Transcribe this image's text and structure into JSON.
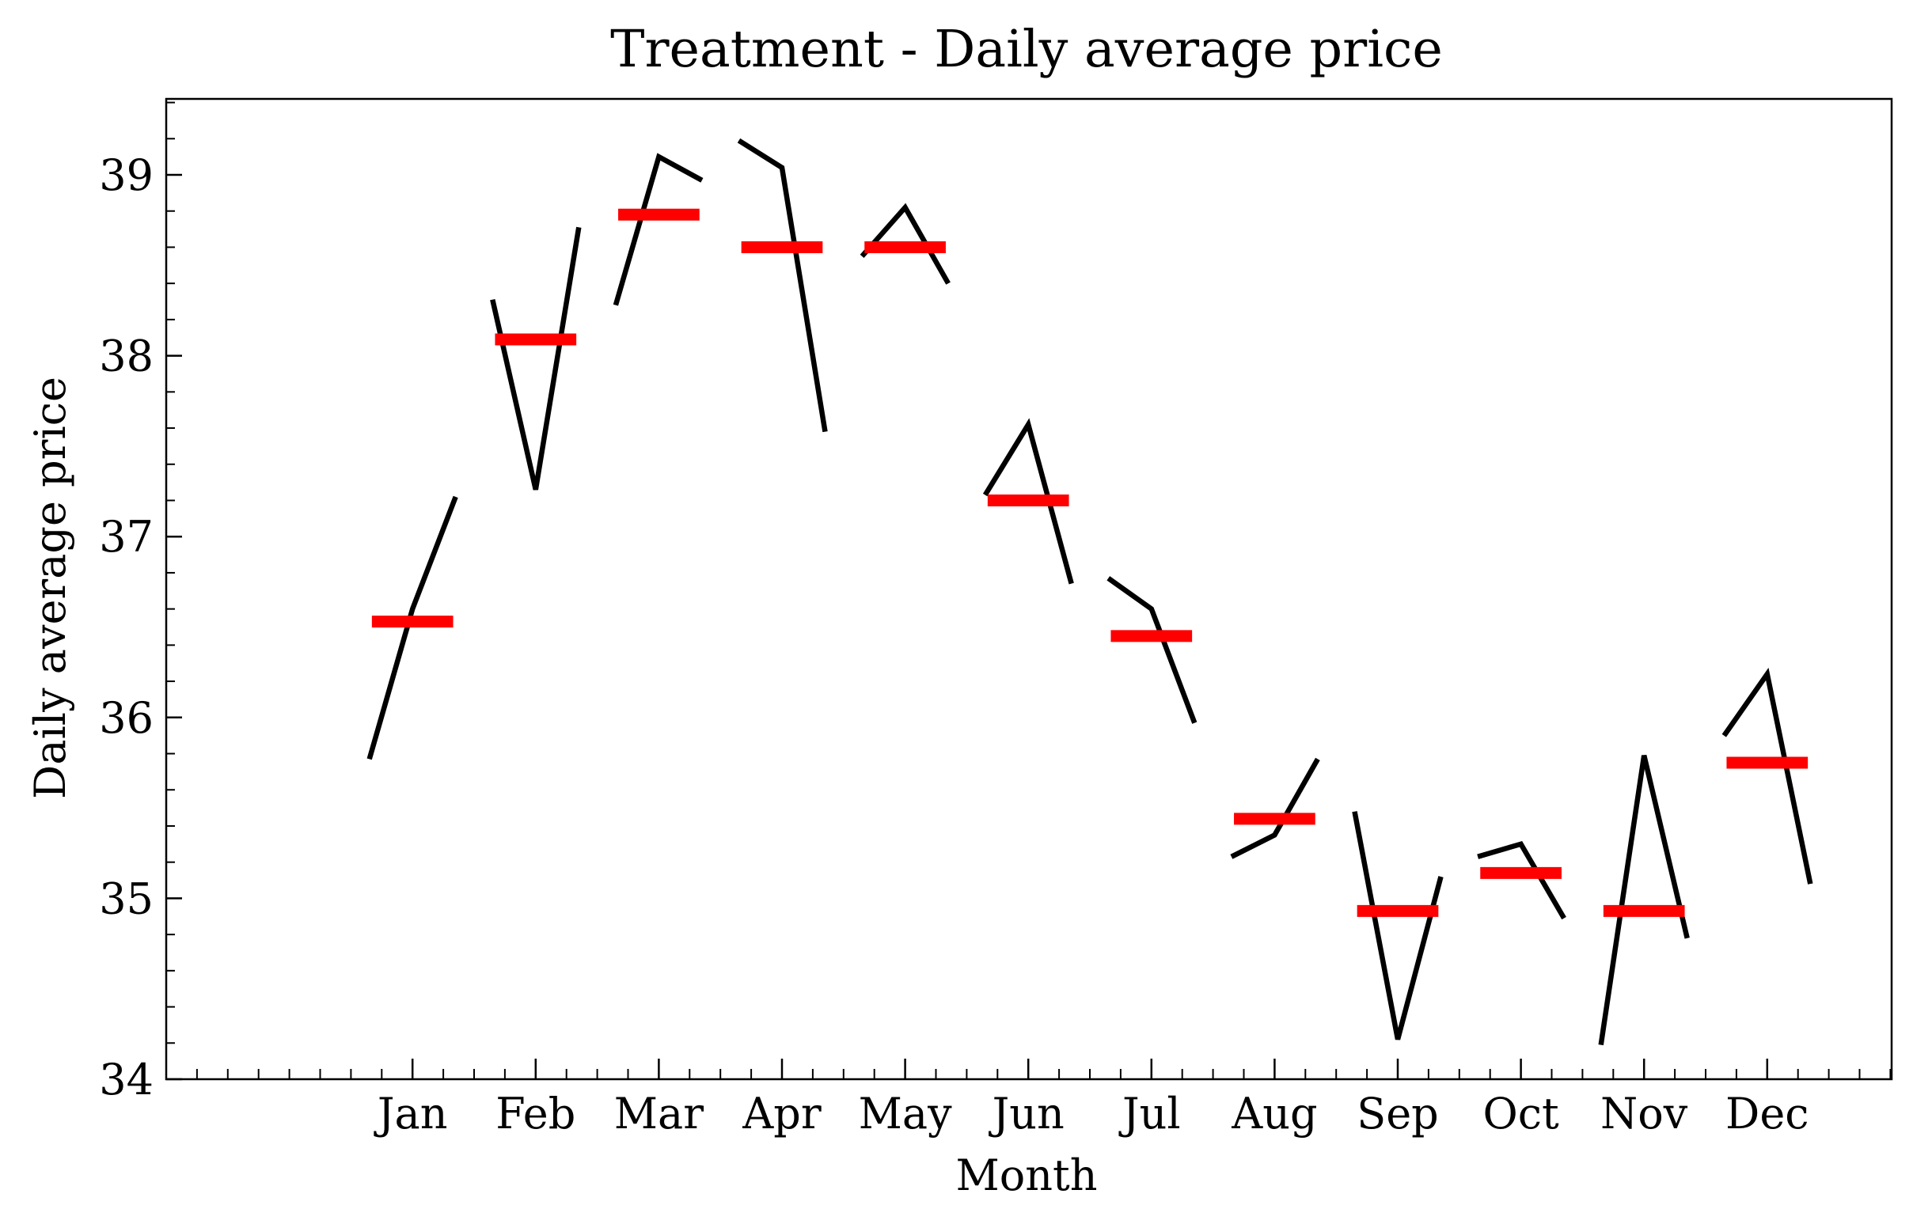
{
  "chart_data": {
    "type": "line",
    "title": "Treatment - Daily average price",
    "xlabel": "Month",
    "ylabel": "Daily average price",
    "ylim": [
      34,
      39.42
    ],
    "yticks": [
      34,
      35,
      36,
      37,
      38,
      39
    ],
    "grid": false,
    "categories": [
      "Jan",
      "Feb",
      "Mar",
      "Apr",
      "May",
      "Jun",
      "Jul",
      "Aug",
      "Sep",
      "Oct",
      "Nov",
      "Dec"
    ],
    "series": [
      {
        "role": "sub-period values",
        "color": "#000000",
        "values": [
          [
            35.77,
            36.6,
            37.22
          ],
          [
            38.31,
            37.26,
            38.71
          ],
          [
            38.28,
            39.1,
            38.97
          ],
          [
            39.19,
            39.04,
            37.58
          ],
          [
            38.55,
            38.82,
            38.4
          ],
          [
            37.23,
            37.62,
            36.74
          ],
          [
            36.77,
            36.6,
            35.97
          ],
          [
            35.23,
            35.35,
            35.77
          ],
          [
            35.48,
            34.22,
            35.12
          ],
          [
            35.23,
            35.3,
            34.89
          ],
          [
            34.19,
            35.79,
            34.78
          ],
          [
            35.9,
            36.24,
            35.08
          ]
        ]
      },
      {
        "role": "monthly mean",
        "color": "#ff0000",
        "values": [
          36.53,
          38.09,
          38.78,
          38.6,
          38.6,
          37.2,
          36.45,
          35.44,
          34.93,
          35.14,
          34.93,
          35.75
        ]
      }
    ]
  }
}
